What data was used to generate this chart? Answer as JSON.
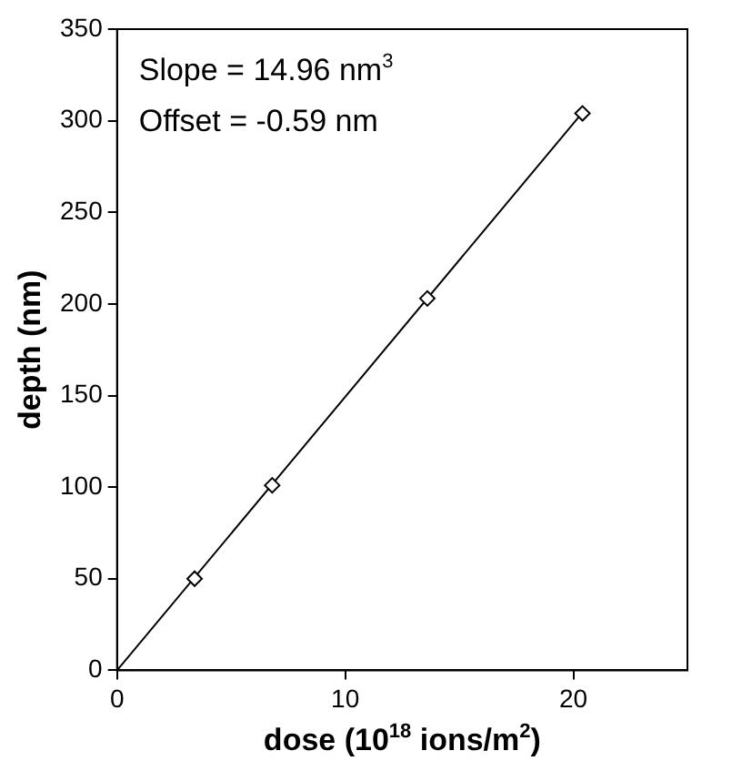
{
  "chart_data": {
    "type": "scatter",
    "xlabel": "dose (10$^{18}$ ions/m$^{2}$)",
    "ylabel": "depth (nm)",
    "annotations": [
      "Slope = 14.96 nm$^{3}$",
      "Offset = -0.59 nm"
    ],
    "series": [
      {
        "color": "#000000",
        "marker": "diamond",
        "x": [
          3.4,
          6.8,
          13.6,
          20.4
        ],
        "values": [
          50,
          101,
          203,
          304
        ]
      },
      {
        "type": "line",
        "color": "#000000",
        "marker": "none",
        "x": [
          0,
          20.5
        ],
        "values": [
          0,
          306
        ]
      }
    ],
    "xlim": [
      0,
      25
    ],
    "xticks": [
      0,
      10,
      20
    ],
    "ylim": [
      0,
      350
    ],
    "yticks": [
      0,
      50,
      100,
      150,
      200,
      250,
      300,
      350
    ],
    "grid": false,
    "legend": false,
    "line_style": "solid"
  }
}
